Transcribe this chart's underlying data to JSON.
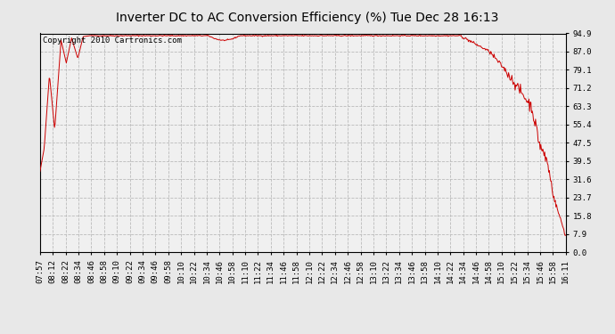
{
  "title": "Inverter DC to AC Conversion Efficiency (%) Tue Dec 28 16:13",
  "copyright": "Copyright 2010 Cartronics.com",
  "line_color": "#cc0000",
  "bg_color": "#e8e8e8",
  "plot_bg_color": "#f0f0f0",
  "grid_color": "#bbbbbb",
  "grid_style": "--",
  "ylim": [
    0.0,
    94.9
  ],
  "yticks": [
    0.0,
    7.9,
    15.8,
    23.7,
    31.6,
    39.5,
    47.5,
    55.4,
    63.3,
    71.2,
    79.1,
    87.0,
    94.9
  ],
  "ylabel_color": "#000000",
  "title_color": "#000000",
  "title_fontsize": 10,
  "copyright_fontsize": 6.5,
  "tick_fontsize": 6.5,
  "x_tick_labels": [
    "07:57",
    "08:12",
    "08:22",
    "08:34",
    "08:46",
    "08:58",
    "09:10",
    "09:22",
    "09:34",
    "09:46",
    "09:58",
    "10:10",
    "10:22",
    "10:34",
    "10:46",
    "10:58",
    "11:10",
    "11:22",
    "11:34",
    "11:46",
    "11:58",
    "12:10",
    "12:22",
    "12:34",
    "12:46",
    "12:58",
    "13:10",
    "13:22",
    "13:34",
    "13:46",
    "13:58",
    "14:10",
    "14:22",
    "14:34",
    "14:46",
    "14:58",
    "15:10",
    "15:22",
    "15:34",
    "15:46",
    "15:58",
    "16:11"
  ]
}
